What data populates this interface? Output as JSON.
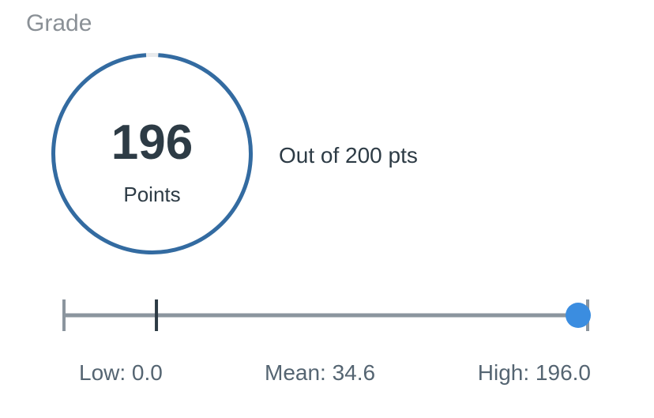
{
  "grade": {
    "title": "Grade",
    "score": "196",
    "score_unit": "Points",
    "points_earned": 196,
    "points_possible": 200,
    "out_of_text": "Out of 200 pts",
    "ring_color": "#336ba1"
  },
  "stats": {
    "low_label": "Low: 0.0",
    "mean_label": "Mean: 34.6",
    "high_label": "High: 196.0",
    "low": 0.0,
    "mean": 34.6,
    "high": 196.0,
    "score": 196,
    "max": 200,
    "track_color": "#8b959e",
    "mean_marker_color": "#2d3b45",
    "score_dot_color": "#3b8de0"
  }
}
